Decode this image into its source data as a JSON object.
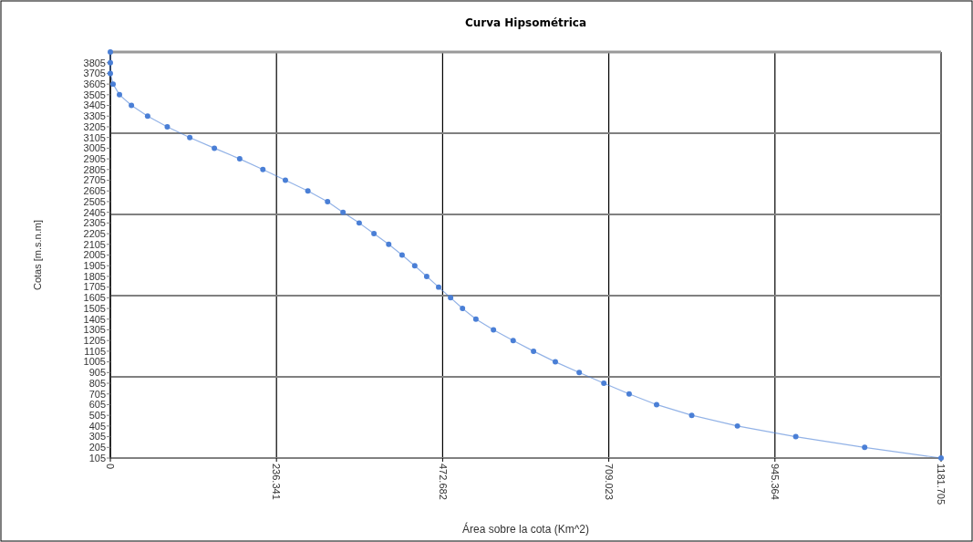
{
  "chart_data": {
    "type": "line",
    "title": "Curva Hipsométrica",
    "xlabel": "Área sobre la cota (Km^2)",
    "ylabel": "Cotas [m.s.n.m]",
    "series": [
      {
        "color": "#4a7fd6",
        "x": [
          0,
          0,
          0,
          3.9,
          13,
          30,
          53,
          81,
          113,
          148,
          184,
          217,
          249,
          281,
          309,
          331,
          354,
          375,
          396,
          415,
          433,
          450,
          467,
          484,
          501,
          520,
          545,
          573,
          602,
          633,
          667,
          702,
          738,
          777,
          827,
          892,
          975,
          1073,
          1181.705
        ],
        "values": [
          3905,
          3805,
          3705,
          3605,
          3505,
          3405,
          3305,
          3205,
          3105,
          3005,
          2905,
          2805,
          2705,
          2605,
          2505,
          2405,
          2305,
          2205,
          2105,
          2005,
          1905,
          1805,
          1705,
          1605,
          1505,
          1405,
          1305,
          1205,
          1105,
          1005,
          905,
          805,
          705,
          605,
          505,
          405,
          305,
          205,
          105
        ]
      }
    ],
    "xlim": [
      0,
      1181.705
    ],
    "xticks": [
      0,
      236.341,
      472.682,
      709.023,
      945.364,
      1181.705
    ],
    "ylim": [
      105,
      3905
    ],
    "yticks": [
      105,
      205,
      305,
      405,
      505,
      605,
      705,
      805,
      905,
      1005,
      1105,
      1205,
      1305,
      1405,
      1505,
      1605,
      1705,
      1805,
      1905,
      2005,
      2105,
      2205,
      2305,
      2405,
      2505,
      2605,
      2705,
      2805,
      2905,
      3005,
      3105,
      3205,
      3305,
      3405,
      3505,
      3605,
      3705,
      3805
    ],
    "grid": "x",
    "marker": "circle",
    "line_style": "solid",
    "ref_lines": [
      {
        "axis": "y",
        "value": 865,
        "color": "#808080"
      },
      {
        "axis": "y",
        "value": 1625,
        "color": "#808080"
      },
      {
        "axis": "y",
        "value": 2385,
        "color": "#808080"
      },
      {
        "axis": "y",
        "value": 3145,
        "color": "#808080"
      }
    ]
  }
}
